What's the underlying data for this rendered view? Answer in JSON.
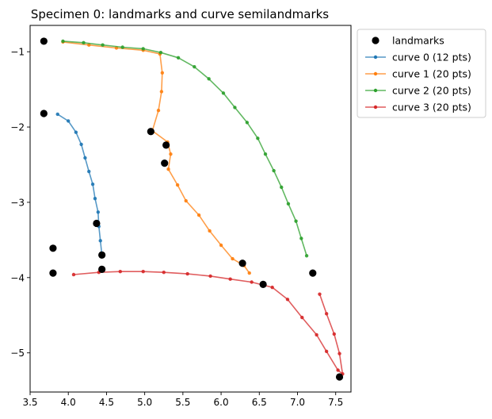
{
  "chart_data": {
    "type": "scatter",
    "title": "Specimen 0: landmarks and curve semilandmarks",
    "xlabel": "",
    "ylabel": "",
    "xlim": [
      3.5,
      7.7
    ],
    "ylim": [
      -5.52,
      -0.65
    ],
    "xticks": [
      3.5,
      4.0,
      4.5,
      5.0,
      5.5,
      6.0,
      6.5,
      7.0,
      7.5
    ],
    "xtick_labels": [
      "3.5",
      "4.0",
      "4.5",
      "5.0",
      "5.5",
      "6.0",
      "6.5",
      "7.0",
      "7.5"
    ],
    "yticks": [
      -1,
      -2,
      -3,
      -4,
      -5
    ],
    "ytick_labels": [
      "−1",
      "−2",
      "−3",
      "−4",
      "−5"
    ],
    "grid": false,
    "legend_position": "outside-top-right",
    "landmarks": {
      "name": "landmarks",
      "color": "#000000",
      "points": [
        [
          3.68,
          -0.86
        ],
        [
          3.68,
          -1.82
        ],
        [
          5.08,
          -2.06
        ],
        [
          5.28,
          -2.24
        ],
        [
          5.26,
          -2.48
        ],
        [
          4.37,
          -3.28
        ],
        [
          3.8,
          -3.61
        ],
        [
          4.44,
          -3.7
        ],
        [
          4.44,
          -3.89
        ],
        [
          3.8,
          -3.94
        ],
        [
          6.28,
          -3.81
        ],
        [
          6.55,
          -4.09
        ],
        [
          7.2,
          -3.94
        ],
        [
          7.55,
          -5.32
        ]
      ]
    },
    "series": [
      {
        "name": "curve 0 (12 pts)",
        "color": "#1f77b4",
        "points": [
          [
            3.86,
            -1.83
          ],
          [
            4.0,
            -1.92
          ],
          [
            4.1,
            -2.07
          ],
          [
            4.17,
            -2.23
          ],
          [
            4.22,
            -2.41
          ],
          [
            4.27,
            -2.59
          ],
          [
            4.32,
            -2.76
          ],
          [
            4.35,
            -2.95
          ],
          [
            4.39,
            -3.13
          ],
          [
            4.4,
            -3.32
          ],
          [
            4.42,
            -3.51
          ],
          [
            4.44,
            -3.7
          ]
        ]
      },
      {
        "name": "curve 1 (20 pts)",
        "color": "#ff7f0e",
        "points": [
          [
            3.93,
            -0.87
          ],
          [
            4.27,
            -0.91
          ],
          [
            4.63,
            -0.95
          ],
          [
            4.98,
            -0.98
          ],
          [
            5.2,
            -1.03
          ],
          [
            5.23,
            -1.28
          ],
          [
            5.22,
            -1.53
          ],
          [
            5.18,
            -1.78
          ],
          [
            5.1,
            -2.05
          ],
          [
            5.3,
            -2.2
          ],
          [
            5.34,
            -2.36
          ],
          [
            5.31,
            -2.56
          ],
          [
            5.43,
            -2.77
          ],
          [
            5.54,
            -2.98
          ],
          [
            5.71,
            -3.17
          ],
          [
            5.85,
            -3.38
          ],
          [
            6.0,
            -3.57
          ],
          [
            6.15,
            -3.75
          ],
          [
            6.3,
            -3.84
          ],
          [
            6.37,
            -3.94
          ]
        ]
      },
      {
        "name": "curve 2 (20 pts)",
        "color": "#2ca02c",
        "points": [
          [
            3.93,
            -0.86
          ],
          [
            4.2,
            -0.88
          ],
          [
            4.45,
            -0.91
          ],
          [
            4.71,
            -0.94
          ],
          [
            4.98,
            -0.96
          ],
          [
            5.21,
            -1.01
          ],
          [
            5.44,
            -1.08
          ],
          [
            5.65,
            -1.2
          ],
          [
            5.84,
            -1.36
          ],
          [
            6.03,
            -1.55
          ],
          [
            6.18,
            -1.74
          ],
          [
            6.34,
            -1.94
          ],
          [
            6.48,
            -2.15
          ],
          [
            6.58,
            -2.36
          ],
          [
            6.69,
            -2.58
          ],
          [
            6.79,
            -2.8
          ],
          [
            6.88,
            -3.02
          ],
          [
            6.98,
            -3.25
          ],
          [
            7.05,
            -3.48
          ],
          [
            7.12,
            -3.71
          ]
        ]
      },
      {
        "name": "curve 3 (20 pts)",
        "color": "#d62728",
        "points": [
          [
            4.07,
            -3.96
          ],
          [
            4.4,
            -3.93
          ],
          [
            4.68,
            -3.92
          ],
          [
            4.98,
            -3.92
          ],
          [
            5.25,
            -3.93
          ],
          [
            5.56,
            -3.95
          ],
          [
            5.86,
            -3.98
          ],
          [
            6.12,
            -4.02
          ],
          [
            6.4,
            -4.06
          ],
          [
            6.67,
            -4.13
          ],
          [
            6.87,
            -4.29
          ],
          [
            7.06,
            -4.53
          ],
          [
            7.25,
            -4.76
          ],
          [
            7.38,
            -4.98
          ],
          [
            7.53,
            -5.23
          ],
          [
            7.59,
            -5.28
          ],
          [
            7.55,
            -5.01
          ],
          [
            7.48,
            -4.75
          ],
          [
            7.38,
            -4.48
          ],
          [
            7.29,
            -4.22
          ]
        ]
      }
    ]
  }
}
